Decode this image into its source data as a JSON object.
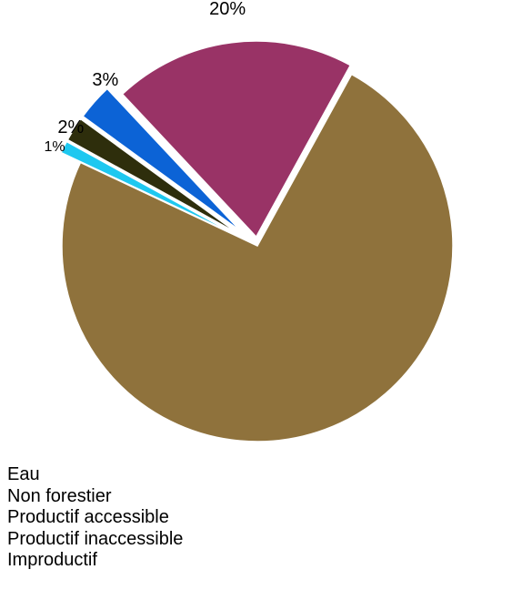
{
  "chart_data": {
    "type": "pie",
    "title": "",
    "slices": [
      {
        "label": "Eau",
        "value": 1,
        "value_label": "1%",
        "color": "#1EC8F0",
        "exploded": true
      },
      {
        "label": "Non forestier",
        "value": 2,
        "value_label": "2%",
        "color": "#2E2E0C",
        "exploded": true
      },
      {
        "label": "Productif accessible",
        "value": 3,
        "value_label": "3%",
        "color": "#0C63D6",
        "exploded": true
      },
      {
        "label": "Productif inaccessible",
        "value": 20,
        "value_label": "20%",
        "color": "#993366",
        "exploded": true
      },
      {
        "label": "Improductif",
        "value": 74,
        "value_label": "74%",
        "color": "#8F723C",
        "exploded": false
      }
    ],
    "legend_placement": "bottom-left"
  }
}
